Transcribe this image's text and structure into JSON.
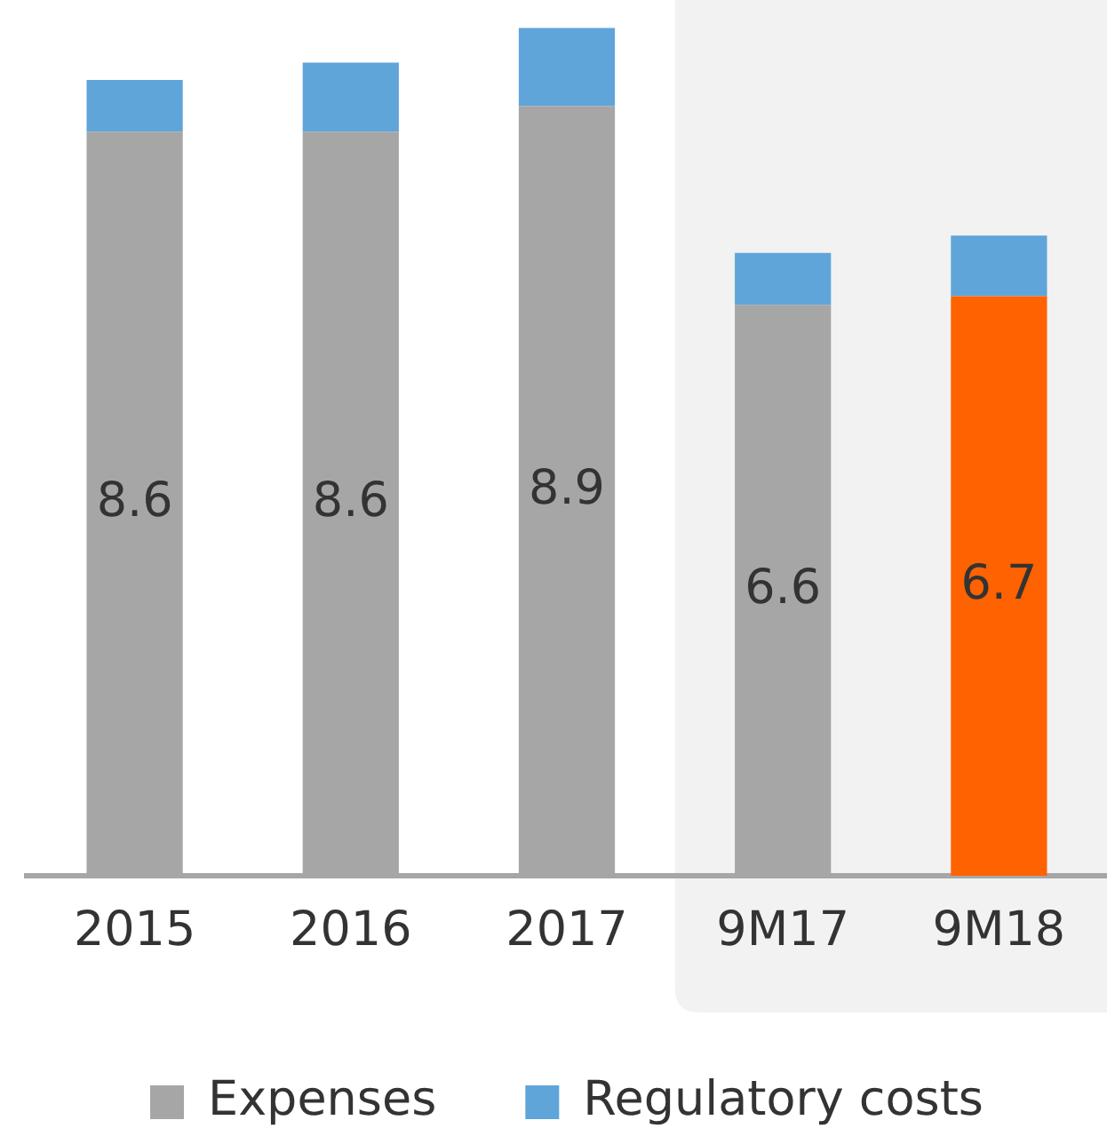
{
  "chart_data": {
    "type": "bar",
    "stacked": true,
    "categories": [
      "2015",
      "2016",
      "2017",
      "9M17",
      "9M18"
    ],
    "series": [
      {
        "name": "Expenses",
        "colors": [
          "#a6a6a6",
          "#a6a6a6",
          "#a6a6a6",
          "#a6a6a6",
          "#ff6200"
        ],
        "values": [
          8.6,
          8.6,
          8.9,
          6.6,
          6.7
        ],
        "value_labels": [
          "8.6",
          "8.6",
          "8.9",
          "6.6",
          "6.7"
        ]
      },
      {
        "name": "Regulatory costs",
        "color": "#5fa5da",
        "values": [
          0.6,
          0.8,
          0.9,
          0.6,
          0.7
        ]
      }
    ],
    "tick_labels": "x",
    "grid": false,
    "legend": "bottom",
    "bands": [
      {
        "axis": "x",
        "from": "9M17",
        "to": "9M18",
        "color": "#f2f2f2"
      }
    ]
  }
}
